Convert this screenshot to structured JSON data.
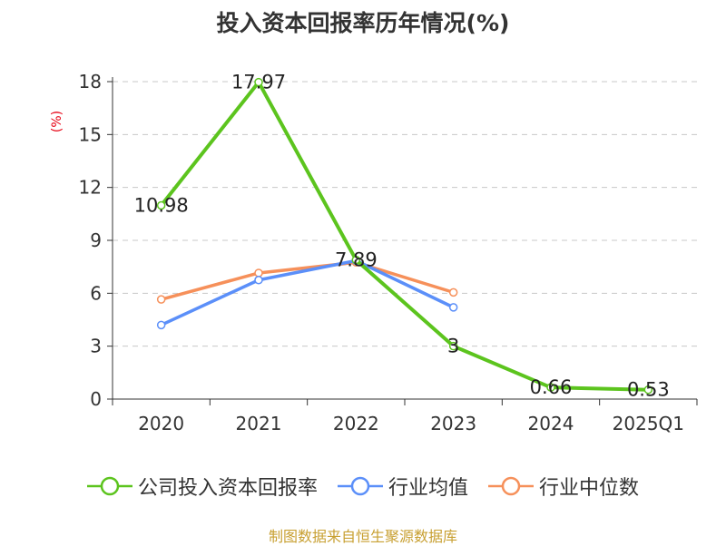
{
  "title": "投入资本回报率历年情况(%)",
  "unit_label": "(%)",
  "source_text": "制图数据来自恒生聚源数据库",
  "chart_data": {
    "type": "line",
    "title": "投入资本回报率历年情况(%)",
    "categories": [
      "2020",
      "2021",
      "2022",
      "2023",
      "2024",
      "2025Q1"
    ],
    "ylim": [
      0,
      18
    ],
    "yticks": [
      0,
      3,
      6,
      9,
      12,
      15,
      18
    ],
    "ylabel": "(%)",
    "grid": true,
    "legend_position": "bottom",
    "series": [
      {
        "name": "公司投入资本回报率",
        "color": "#5cc41e",
        "values": [
          10.98,
          17.97,
          7.89,
          3,
          0.66,
          0.53
        ],
        "labels": [
          "10.98",
          "17.97",
          "7.89",
          "3",
          "0.66",
          "0.53"
        ]
      },
      {
        "name": "行业均值",
        "color": "#5b8ff9",
        "values": [
          4.2,
          6.75,
          7.85,
          5.2,
          null,
          null
        ]
      },
      {
        "name": "行业中位数",
        "color": "#f6905a",
        "values": [
          5.65,
          7.15,
          7.75,
          6.05,
          null,
          null
        ]
      }
    ]
  }
}
